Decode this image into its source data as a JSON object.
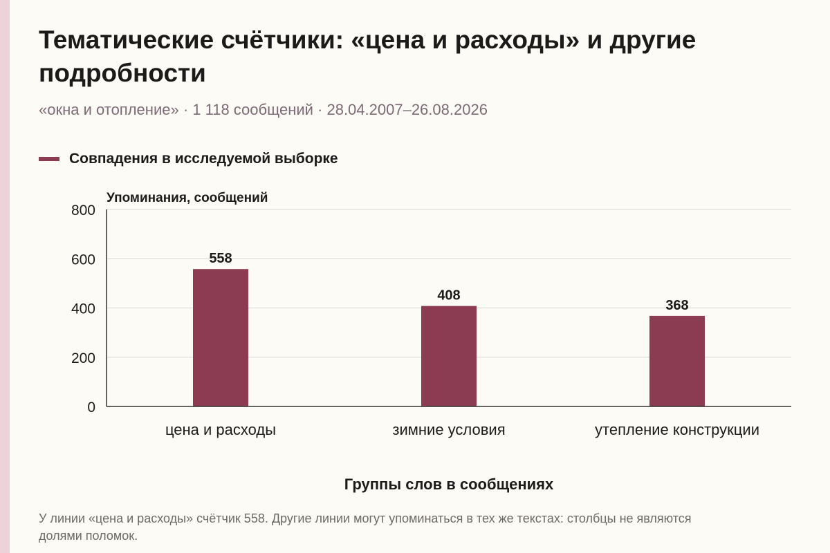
{
  "title": "Тематические счётчики: «цена и расходы» и другие подробности",
  "subtitle": "«окна и отопление» · 1 118 сообщений · 28.04.2007–26.08.2026",
  "footnote": "У линии «цена и расходы» счётчик 558. Другие линии могут упоминаться в тех же текстах: столбцы не являются долями поломок.",
  "colors": {
    "bar": "#8b3c52",
    "grid": "#d9d7d3",
    "axis": "#333333",
    "text": "#1c1b1a"
  },
  "chart_data": {
    "type": "bar",
    "categories": [
      "цена и расходы",
      "зимние условия",
      "утепление конструкции"
    ],
    "series": [
      {
        "name": "Совпадения в исследуемой выборке",
        "values": [
          558,
          408,
          368
        ]
      }
    ],
    "ylabel": "Упоминания, сообщений",
    "xlabel": "Группы слов в сообщениях",
    "ylim": [
      0,
      800
    ],
    "yticks": [
      0,
      200,
      400,
      600,
      800
    ],
    "grid": true,
    "legend": "top-left",
    "data_labels": true
  }
}
